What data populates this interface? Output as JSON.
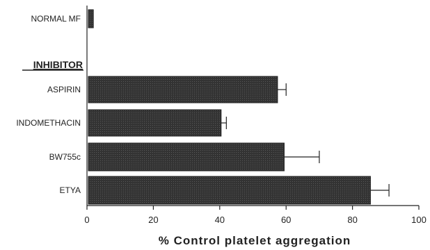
{
  "chart_data": {
    "type": "bar",
    "orientation": "horizontal",
    "title": "",
    "xlabel": "% Control platelet aggregation",
    "ylabel": "",
    "xlim": [
      0,
      100
    ],
    "x_ticks": [
      0,
      20,
      40,
      60,
      80,
      100
    ],
    "group_label": "INHIBITOR",
    "categories": [
      "NORMAL MF",
      "ASPIRIN",
      "INDOMETHACIN",
      "BW755c",
      "ETYA"
    ],
    "values": [
      1.5,
      57,
      40,
      59,
      85
    ],
    "errors": [
      0.5,
      3,
      2,
      11,
      6
    ],
    "grid": false,
    "bar_color": "#333333"
  }
}
